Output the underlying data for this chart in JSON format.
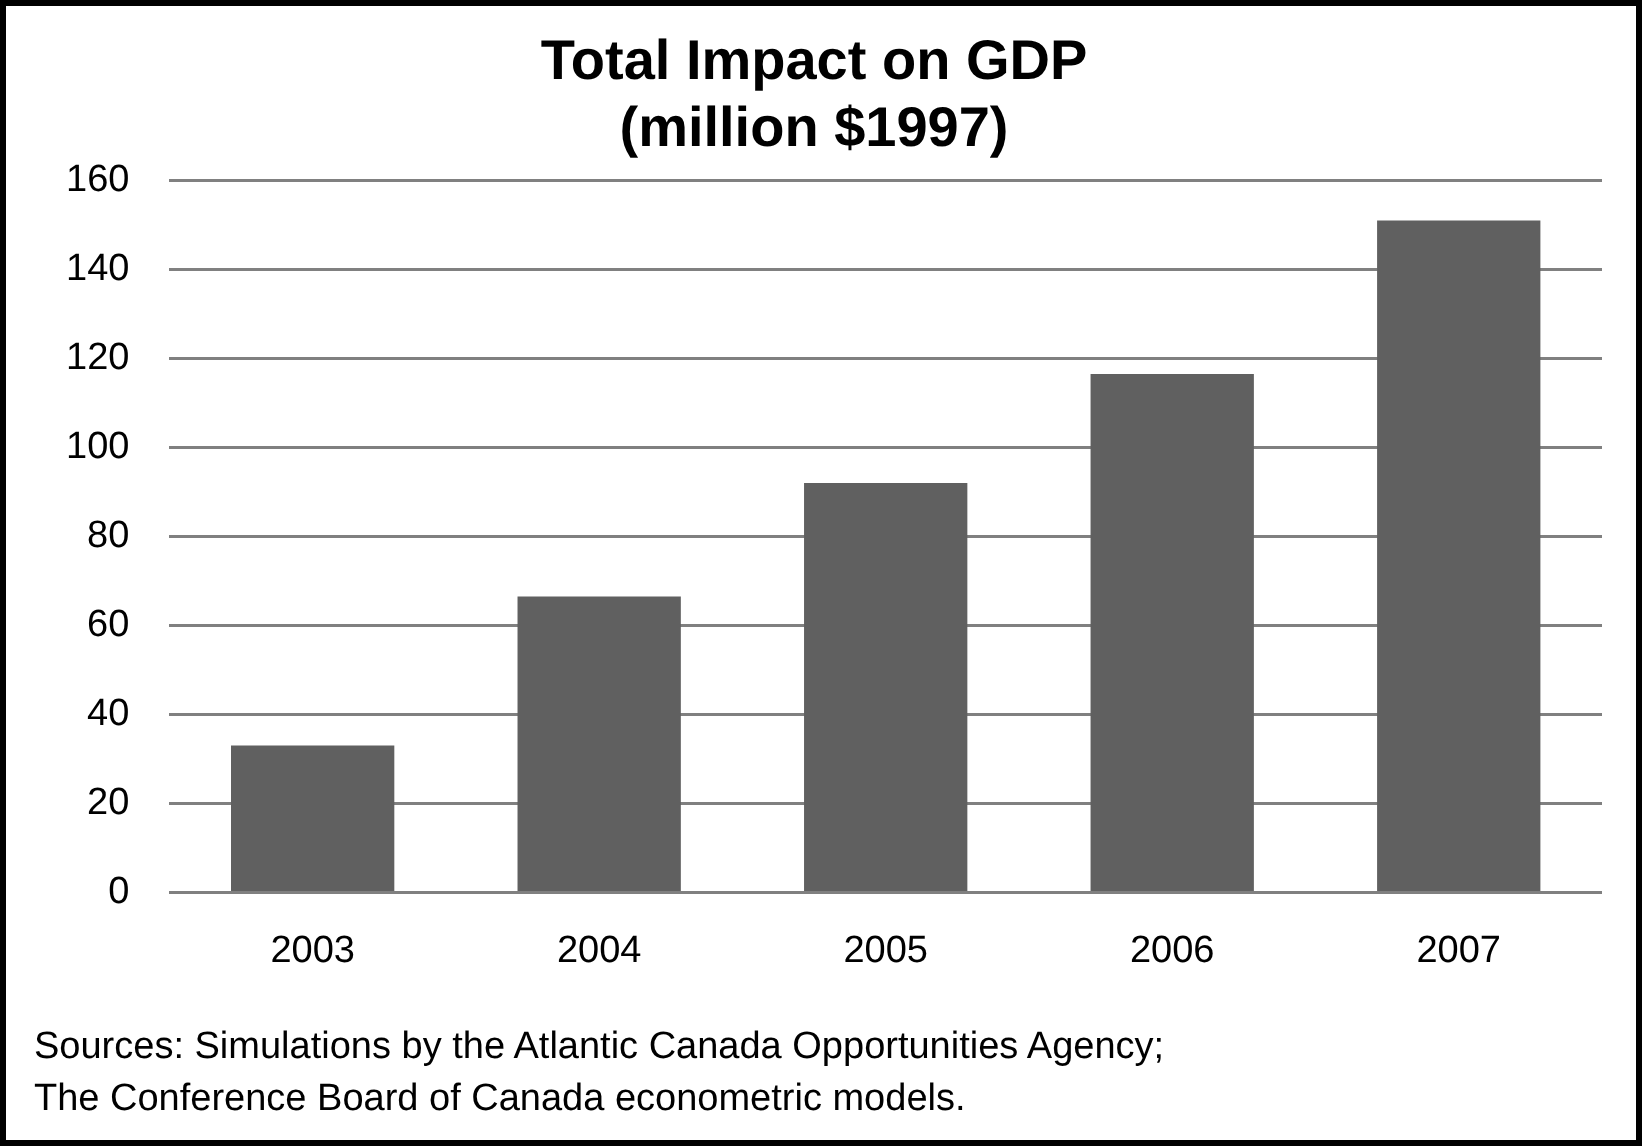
{
  "chart_data": {
    "type": "bar",
    "title": "Total Impact on GDP\n(million $1997)",
    "categories": [
      "2003",
      "2004",
      "2005",
      "2006",
      "2007"
    ],
    "values": [
      33,
      66.5,
      92,
      116.5,
      151
    ],
    "color": "#606060",
    "ylim": [
      0,
      160
    ],
    "yticks": [
      0,
      20,
      40,
      60,
      80,
      100,
      120,
      140,
      160
    ],
    "grid": "y",
    "annotations": [
      "Sources: Simulations by the Atlantic Canada Opportunities Agency;",
      "The Conference Board of Canada econometric models."
    ]
  }
}
